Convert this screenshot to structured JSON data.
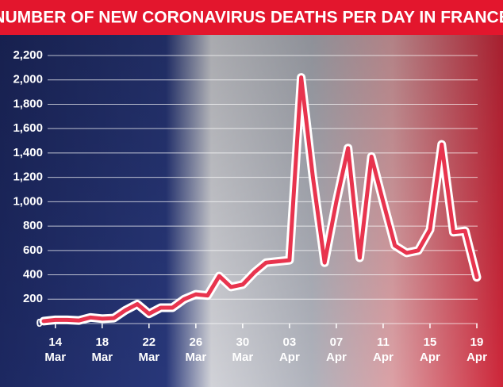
{
  "chart_data": {
    "type": "line",
    "title": "NUMBER OF NEW CORONAVIRUS DEATHS PER DAY IN FRANCE",
    "categories": [
      null,
      "14 Mar",
      null,
      null,
      null,
      "18 Mar",
      null,
      null,
      null,
      "22 Mar",
      null,
      null,
      null,
      "26 Mar",
      null,
      null,
      null,
      "30 Mar",
      null,
      null,
      null,
      "03 Apr",
      null,
      null,
      null,
      "07 Apr",
      null,
      null,
      null,
      "11 Apr",
      null,
      null,
      null,
      "15 Apr",
      null,
      null,
      null,
      "19 Apr"
    ],
    "series": [
      {
        "name": "Deaths",
        "color": "#e8344e",
        "values": [
          20,
          30,
          30,
          25,
          50,
          40,
          45,
          110,
          160,
          80,
          130,
          130,
          200,
          240,
          230,
          390,
          300,
          320,
          420,
          500,
          510,
          520,
          2020,
          1200,
          500,
          1000,
          1440,
          540,
          1370,
          1000,
          640,
          580,
          600,
          770,
          1470,
          750,
          760,
          380
        ]
      }
    ],
    "ylim": [
      0,
      2200
    ],
    "yticks": [
      0,
      200,
      400,
      600,
      800,
      {
        "value": 1000,
        "label": "1,000"
      },
      {
        "value": 1200,
        "label": "1,200"
      },
      {
        "value": 1400,
        "label": "1,400"
      },
      {
        "value": 1600,
        "label": "1,600"
      },
      {
        "value": 1800,
        "label": "1,800"
      },
      {
        "value": 2000,
        "label": "2,000"
      },
      {
        "value": 2200,
        "label": "2,200"
      }
    ],
    "grid": true
  }
}
